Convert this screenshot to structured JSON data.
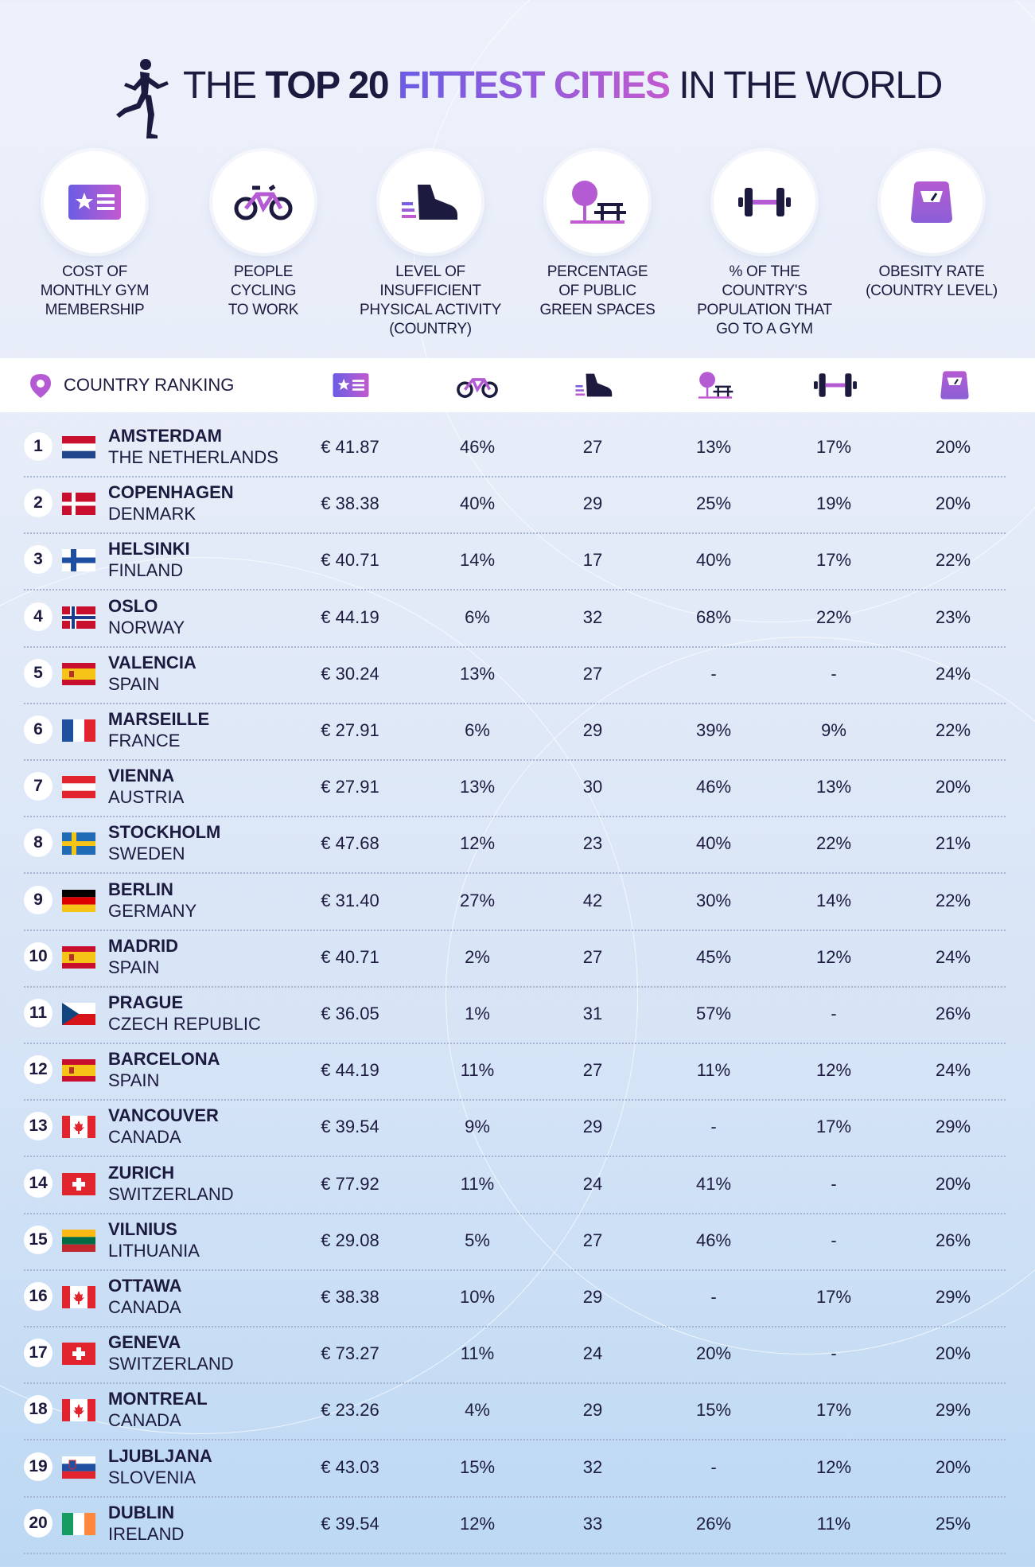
{
  "title": {
    "part1": "THE ",
    "part2": "TOP 20 ",
    "part3": "FITTEST CITIES",
    "part4": " IN THE WORLD"
  },
  "categories": [
    {
      "icon": "membership-card-icon",
      "label": "COST OF\nMONTHLY GYM\nMEMBERSHIP"
    },
    {
      "icon": "bicycle-icon",
      "label": "PEOPLE\nCYCLING\nTO WORK"
    },
    {
      "icon": "sneaker-icon",
      "label": "LEVEL OF\nINSUFFICIENT\nPHYSICAL ACTIVITY\n(COUNTRY)"
    },
    {
      "icon": "park-bench-tree-icon",
      "label": "PERCENTAGE\nOF PUBLIC\nGREEN SPACES"
    },
    {
      "icon": "dumbbell-icon",
      "label": "% OF THE\nCOUNTRY'S\nPOPULATION THAT\nGO TO A GYM"
    },
    {
      "icon": "weighing-scale-icon",
      "label": "OBESITY RATE\n(COUNTRY LEVEL)"
    }
  ],
  "table": {
    "rank_header": "COUNTRY RANKING",
    "rows": [
      {
        "rank": "1",
        "flag": "netherlands",
        "city": "AMSTERDAM",
        "country": "THE NETHERLANDS",
        "values": [
          "€ 41.87",
          "46%",
          "27",
          "13%",
          "17%",
          "20%"
        ]
      },
      {
        "rank": "2",
        "flag": "denmark",
        "city": "COPENHAGEN",
        "country": "DENMARK",
        "values": [
          "€ 38.38",
          "40%",
          "29",
          "25%",
          "19%",
          "20%"
        ]
      },
      {
        "rank": "3",
        "flag": "finland",
        "city": "HELSINKI",
        "country": "FINLAND",
        "values": [
          "€ 40.71",
          "14%",
          "17",
          "40%",
          "17%",
          "22%"
        ]
      },
      {
        "rank": "4",
        "flag": "norway",
        "city": "OSLO",
        "country": "NORWAY",
        "values": [
          "€ 44.19",
          "6%",
          "32",
          "68%",
          "22%",
          "23%"
        ]
      },
      {
        "rank": "5",
        "flag": "spain",
        "city": "VALENCIA",
        "country": "SPAIN",
        "values": [
          "€ 30.24",
          "13%",
          "27",
          "-",
          "-",
          "24%"
        ]
      },
      {
        "rank": "6",
        "flag": "france",
        "city": "MARSEILLE",
        "country": "FRANCE",
        "values": [
          "€ 27.91",
          "6%",
          "29",
          "39%",
          "9%",
          "22%"
        ]
      },
      {
        "rank": "7",
        "flag": "austria",
        "city": "VIENNA",
        "country": "AUSTRIA",
        "values": [
          "€ 27.91",
          "13%",
          "30",
          "46%",
          "13%",
          "20%"
        ]
      },
      {
        "rank": "8",
        "flag": "sweden",
        "city": "STOCKHOLM",
        "country": "SWEDEN",
        "values": [
          "€ 47.68",
          "12%",
          "23",
          "40%",
          "22%",
          "21%"
        ]
      },
      {
        "rank": "9",
        "flag": "germany",
        "city": "BERLIN",
        "country": "GERMANY",
        "values": [
          "€ 31.40",
          "27%",
          "42",
          "30%",
          "14%",
          "22%"
        ]
      },
      {
        "rank": "10",
        "flag": "spain",
        "city": "MADRID",
        "country": "SPAIN",
        "values": [
          "€ 40.71",
          "2%",
          "27",
          "45%",
          "12%",
          "24%"
        ]
      },
      {
        "rank": "11",
        "flag": "czech",
        "city": "PRAGUE",
        "country": "CZECH REPUBLIC",
        "values": [
          "€ 36.05",
          "1%",
          "31",
          "57%",
          "-",
          "26%"
        ]
      },
      {
        "rank": "12",
        "flag": "spain",
        "city": "BARCELONA",
        "country": "SPAIN",
        "values": [
          "€ 44.19",
          "11%",
          "27",
          "11%",
          "12%",
          "24%"
        ]
      },
      {
        "rank": "13",
        "flag": "canada",
        "city": "VANCOUVER",
        "country": "CANADA",
        "values": [
          "€ 39.54",
          "9%",
          "29",
          "-",
          "17%",
          "29%"
        ]
      },
      {
        "rank": "14",
        "flag": "switzerland",
        "city": "ZURICH",
        "country": "SWITZERLAND",
        "values": [
          "€ 77.92",
          "11%",
          "24",
          "41%",
          "-",
          "20%"
        ]
      },
      {
        "rank": "15",
        "flag": "lithuania",
        "city": "VILNIUS",
        "country": "LITHUANIA",
        "values": [
          "€ 29.08",
          "5%",
          "27",
          "46%",
          "-",
          "26%"
        ]
      },
      {
        "rank": "16",
        "flag": "canada",
        "city": "OTTAWA",
        "country": "CANADA",
        "values": [
          "€ 38.38",
          "10%",
          "29",
          "-",
          "17%",
          "29%"
        ]
      },
      {
        "rank": "17",
        "flag": "switzerland",
        "city": "GENEVA",
        "country": "SWITZERLAND",
        "values": [
          "€ 73.27",
          "11%",
          "24",
          "20%",
          "-",
          "20%"
        ]
      },
      {
        "rank": "18",
        "flag": "canada",
        "city": "MONTREAL",
        "country": "CANADA",
        "values": [
          "€ 23.26",
          "4%",
          "29",
          "15%",
          "17%",
          "29%"
        ]
      },
      {
        "rank": "19",
        "flag": "slovenia",
        "city": "LJUBLJANA",
        "country": "SLOVENIA",
        "values": [
          "€ 43.03",
          "15%",
          "32",
          "-",
          "12%",
          "20%"
        ]
      },
      {
        "rank": "20",
        "flag": "ireland",
        "city": "DUBLIN",
        "country": "IRELAND",
        "values": [
          "€ 39.54",
          "12%",
          "33",
          "26%",
          "11%",
          "25%"
        ]
      }
    ]
  },
  "colors": {
    "accent_purple": "#8b5fd6",
    "accent_magenta": "#c25ad0",
    "text_dark": "#1c1a3f"
  }
}
